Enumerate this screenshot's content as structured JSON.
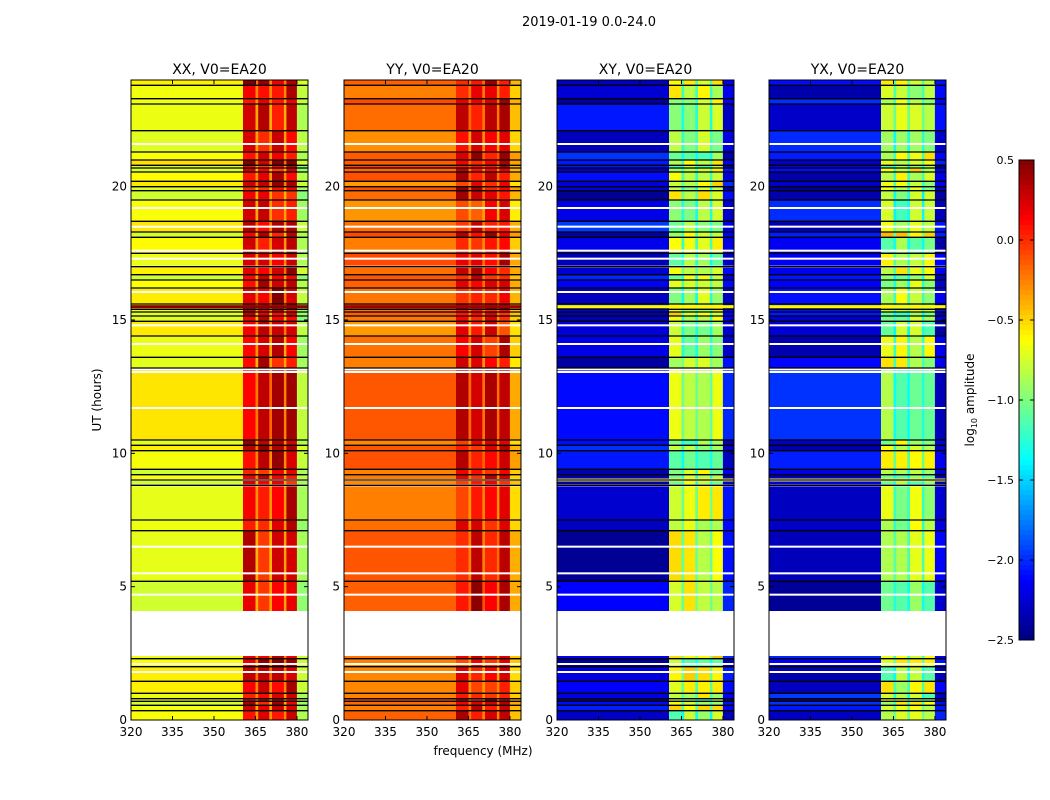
{
  "chart_data": {
    "type": "heatmap",
    "suptitle": "2019-01-19 0.0-24.0",
    "xlabel": "frequency (MHz)",
    "ylabel": "UT (hours)",
    "xlim": [
      320,
      384
    ],
    "ylim": [
      0,
      24
    ],
    "xticks": [
      "320",
      "335",
      "350",
      "365",
      "380"
    ],
    "xtick_values": [
      320,
      335,
      350,
      365,
      380
    ],
    "yticks": [
      "0",
      "5",
      "10",
      "15",
      "20"
    ],
    "ytick_values": [
      0,
      5,
      10,
      15,
      20
    ],
    "no_data_interval_hours": [
      2.4,
      4.1
    ],
    "flagged_black_rows_hours": [
      23.8,
      23.3,
      23.1,
      22.1,
      21.3,
      21.0,
      20.8,
      20.7,
      20.55,
      20.2,
      20.0,
      19.85,
      19.5,
      18.7,
      18.3,
      18.1,
      17.5,
      17.0,
      16.7,
      16.5,
      16.2,
      15.6,
      15.4,
      15.3,
      15.15,
      14.95,
      14.4,
      13.6,
      13.2,
      10.5,
      10.3,
      10.1,
      9.4,
      9.2,
      9.0,
      8.8,
      7.5,
      7.1,
      5.2,
      2.3,
      2.0,
      1.45,
      1.0,
      0.8,
      0.7,
      0.55,
      0.35
    ],
    "flagged_white_rows_hours": [
      21.6,
      19.2,
      18.5,
      17.6,
      17.3,
      17.0,
      16.05,
      14.8,
      14.1,
      13.15,
      13.05,
      11.7,
      9.0,
      8.8,
      6.5,
      5.5,
      4.7,
      2.1,
      1.8
    ],
    "bright_rows": [
      {
        "hours": 15.5,
        "pols": [
          "XX",
          "YY",
          "XY",
          "YX"
        ]
      },
      {
        "hours": 9.0,
        "pols": [
          "XY",
          "YX"
        ]
      }
    ],
    "band_segments_mhz": [
      {
        "range": [
          320,
          360.5
        ],
        "kind": "base"
      },
      {
        "range": [
          360.5,
          365
        ],
        "kind": "hot"
      },
      {
        "range": [
          365,
          366
        ],
        "kind": "gap"
      },
      {
        "range": [
          366,
          370
        ],
        "kind": "hot"
      },
      {
        "range": [
          370,
          371
        ],
        "kind": "gap"
      },
      {
        "range": [
          371,
          375.3
        ],
        "kind": "hot"
      },
      {
        "range": [
          375.3,
          376.2
        ],
        "kind": "gap"
      },
      {
        "range": [
          376.2,
          380
        ],
        "kind": "hot"
      },
      {
        "range": [
          380,
          384
        ],
        "kind": "edge"
      }
    ],
    "panels": [
      {
        "title": "XX, V0=EA20",
        "pol": "XX",
        "levels_log10": {
          "base": -0.65,
          "hot": 0.25,
          "gap": -0.3,
          "edge": -0.85,
          "bright": 0.45
        }
      },
      {
        "title": "YY, V0=EA20",
        "pol": "YY",
        "levels_log10": {
          "base": -0.2,
          "hot": 0.15,
          "gap": -0.25,
          "edge": -0.45,
          "bright": 0.4
        }
      },
      {
        "title": "XY, V0=EA20",
        "pol": "XY",
        "levels_log10": {
          "base": -2.3,
          "hot": -0.8,
          "gap": -1.2,
          "edge": -2.2,
          "bright": -0.6
        }
      },
      {
        "title": "YX, V0=EA20",
        "pol": "YX",
        "levels_log10": {
          "base": -2.3,
          "hot": -0.8,
          "gap": -1.2,
          "edge": -2.2,
          "bright": -0.6
        }
      }
    ],
    "colorbar": {
      "label": "log10 amplitude",
      "label_main": "log",
      "label_sub": "10",
      "label_rest": " amplitude",
      "colormap": "jet",
      "range": [
        -2.5,
        0.5
      ],
      "ticks": [
        "0.5",
        "0.0",
        "−0.5",
        "−1.0",
        "−1.5",
        "−2.0",
        "−2.5"
      ],
      "tick_values": [
        0.5,
        0.0,
        -0.5,
        -1.0,
        -1.5,
        -2.0,
        -2.5
      ]
    }
  }
}
